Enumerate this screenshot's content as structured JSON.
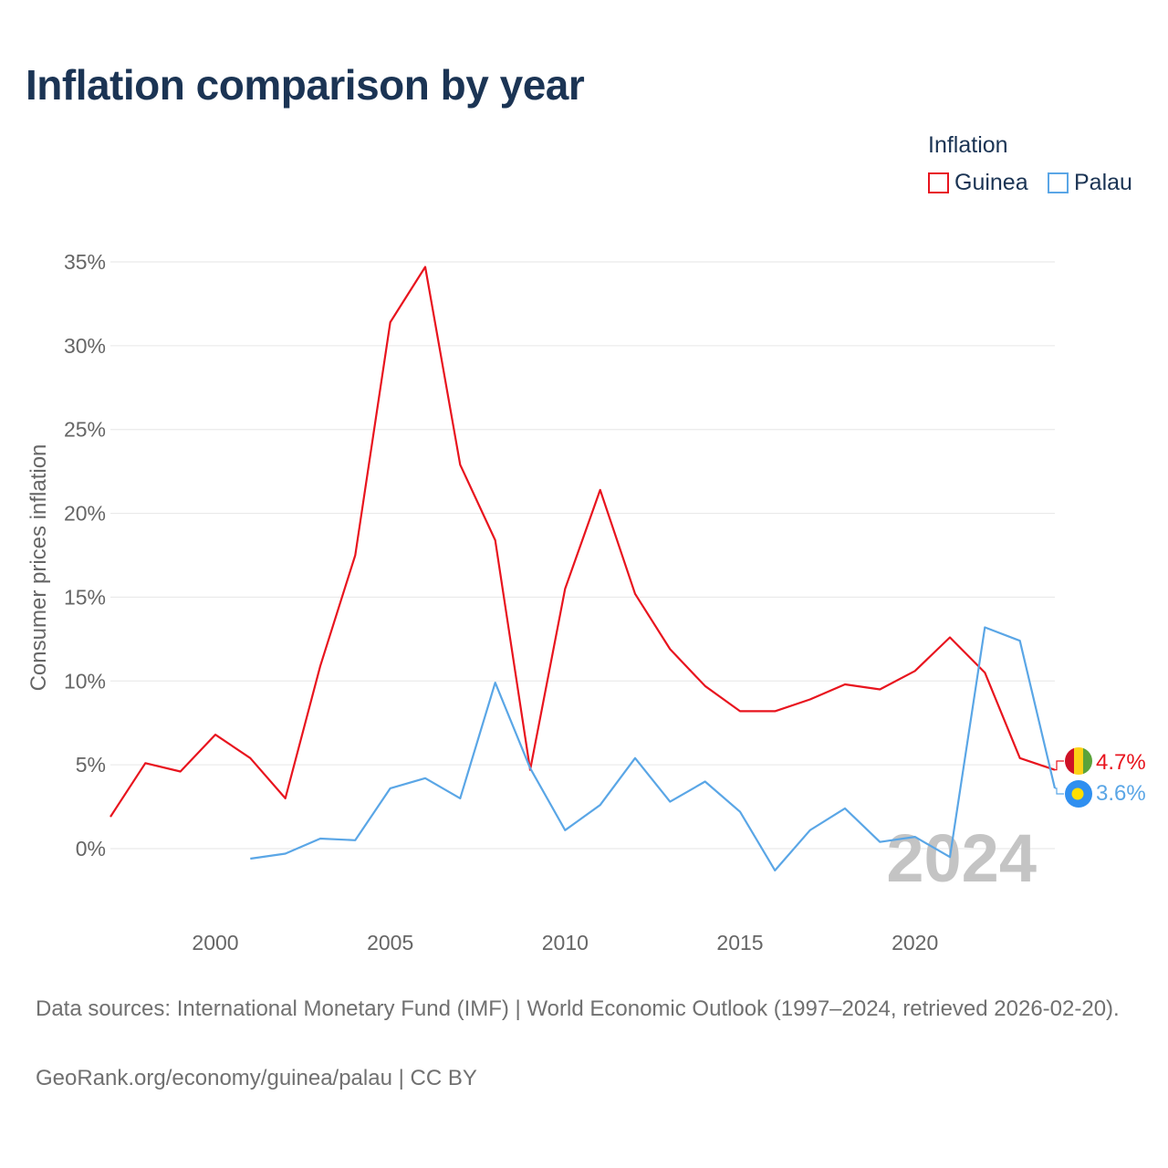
{
  "title": "Inflation comparison by year",
  "legend": {
    "title": "Inflation",
    "items": [
      {
        "label": "Guinea",
        "color": "#e8141e"
      },
      {
        "label": "Palau",
        "color": "#5aa6e6"
      }
    ]
  },
  "year_watermark": "2024",
  "source_text": "Data sources: International Monetary Fund (IMF) | World Economic Outlook (1997–2024, retrieved 2026-02-20).",
  "credit_text": "GeoRank.org/economy/guinea/palau | CC BY",
  "chart_data": {
    "type": "line",
    "title": "Inflation comparison by year",
    "xlabel": "",
    "ylabel": "Consumer prices inflation",
    "xlim": [
      1997,
      2024
    ],
    "ylim": [
      -4,
      36
    ],
    "x_ticks": [
      2000,
      2005,
      2010,
      2015,
      2020
    ],
    "y_ticks": [
      0,
      5,
      10,
      15,
      20,
      25,
      30,
      35
    ],
    "y_tick_labels": [
      "0%",
      "5%",
      "10%",
      "15%",
      "20%",
      "25%",
      "30%",
      "35%"
    ],
    "grid": true,
    "legend_position": "top-right",
    "series": [
      {
        "name": "Guinea",
        "color": "#e8141e",
        "end_label": "4.7%",
        "x": [
          1997,
          1998,
          1999,
          2000,
          2001,
          2002,
          2003,
          2004,
          2005,
          2006,
          2007,
          2008,
          2009,
          2010,
          2011,
          2012,
          2013,
          2014,
          2015,
          2016,
          2017,
          2018,
          2019,
          2020,
          2021,
          2022,
          2023,
          2024
        ],
        "values": [
          1.9,
          5.1,
          4.6,
          6.8,
          5.4,
          3.0,
          10.9,
          17.5,
          31.4,
          34.7,
          22.9,
          18.4,
          4.7,
          15.5,
          21.4,
          15.2,
          11.9,
          9.7,
          8.2,
          8.2,
          8.9,
          9.8,
          9.5,
          10.6,
          12.6,
          10.5,
          5.4,
          4.7
        ]
      },
      {
        "name": "Palau",
        "color": "#5aa6e6",
        "end_label": "3.6%",
        "x": [
          2001,
          2002,
          2003,
          2004,
          2005,
          2006,
          2007,
          2008,
          2009,
          2010,
          2011,
          2012,
          2013,
          2014,
          2015,
          2016,
          2017,
          2018,
          2019,
          2020,
          2021,
          2022,
          2023,
          2024
        ],
        "values": [
          -0.6,
          -0.3,
          0.6,
          0.5,
          3.6,
          4.2,
          3.0,
          9.9,
          4.8,
          1.1,
          2.6,
          5.4,
          2.8,
          4.0,
          2.2,
          -1.3,
          1.1,
          2.4,
          0.4,
          0.7,
          -0.5,
          13.2,
          12.4,
          3.6
        ]
      }
    ]
  }
}
